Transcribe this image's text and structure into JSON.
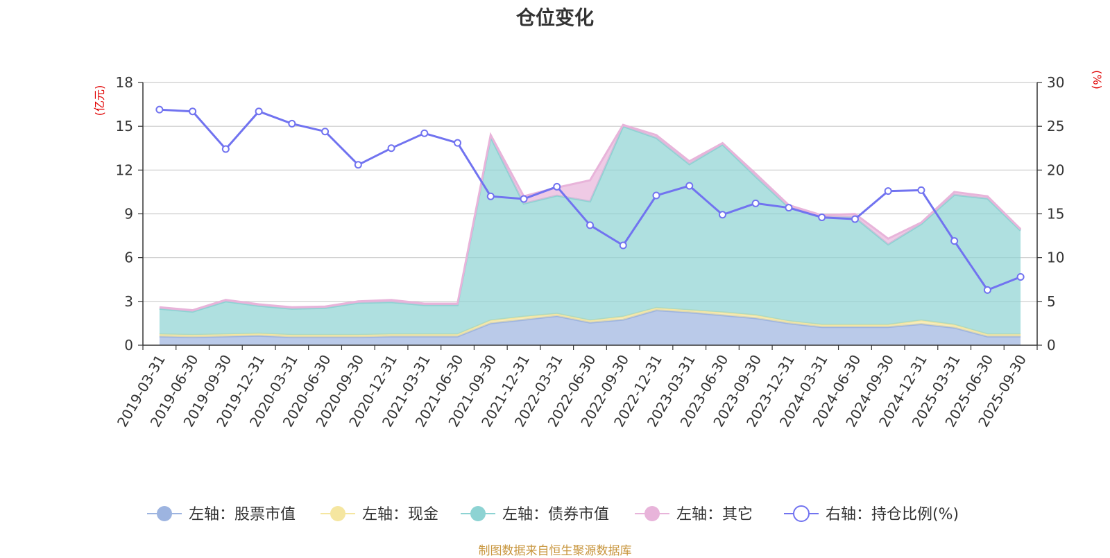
{
  "chart_data": {
    "type": "area",
    "title": "仓位变化",
    "source": "制图数据来自恒生聚源数据库",
    "left_axis": {
      "unit": "(亿元)",
      "ylim": [
        0,
        18
      ],
      "ticks": [
        0,
        3,
        6,
        9,
        12,
        15,
        18
      ]
    },
    "right_axis": {
      "unit": "(%)",
      "ylim": [
        0,
        30
      ],
      "ticks": [
        0,
        5,
        10,
        15,
        20,
        25,
        30
      ]
    },
    "categories": [
      "2019-03-31",
      "2019-06-30",
      "2019-09-30",
      "2019-12-31",
      "2020-03-31",
      "2020-06-30",
      "2020-09-30",
      "2020-12-31",
      "2021-03-31",
      "2021-06-30",
      "2021-09-30",
      "2021-12-31",
      "2022-03-31",
      "2022-06-30",
      "2022-09-30",
      "2022-12-31",
      "2023-03-31",
      "2023-06-30",
      "2023-09-30",
      "2023-12-31",
      "2024-03-31",
      "2024-06-30",
      "2024-09-30",
      "2024-12-31",
      "2025-03-31",
      "2025-06-30",
      "2025-09-30"
    ],
    "series": [
      {
        "name": "左轴：股票市值",
        "axis": "left",
        "kind": "stacked-area",
        "color": "#9db4e0",
        "values": [
          0.6,
          0.55,
          0.6,
          0.65,
          0.55,
          0.55,
          0.55,
          0.6,
          0.6,
          0.6,
          1.5,
          1.75,
          2.0,
          1.55,
          1.75,
          2.4,
          2.25,
          2.05,
          1.85,
          1.5,
          1.25,
          1.25,
          1.25,
          1.45,
          1.2,
          0.6,
          0.6
        ]
      },
      {
        "name": "左轴：现金",
        "axis": "left",
        "kind": "stacked-area",
        "color": "#f5e6a0",
        "values": [
          0.15,
          0.15,
          0.15,
          0.15,
          0.15,
          0.15,
          0.15,
          0.15,
          0.15,
          0.15,
          0.2,
          0.2,
          0.15,
          0.15,
          0.2,
          0.15,
          0.15,
          0.2,
          0.2,
          0.15,
          0.15,
          0.15,
          0.15,
          0.25,
          0.2,
          0.15,
          0.15
        ]
      },
      {
        "name": "左轴：债券市值",
        "axis": "left",
        "kind": "stacked-area",
        "color": "#8dd3d3",
        "values": [
          1.75,
          1.6,
          2.25,
          1.9,
          1.8,
          1.85,
          2.2,
          2.2,
          2.0,
          2.0,
          12.55,
          7.75,
          8.1,
          8.15,
          13.05,
          11.65,
          10.0,
          11.5,
          9.5,
          7.8,
          7.4,
          7.35,
          5.5,
          6.6,
          8.9,
          9.3,
          7.1
        ]
      },
      {
        "name": "左轴：其它",
        "axis": "left",
        "kind": "stacked-area",
        "color": "#e8b4da",
        "values": [
          0.1,
          0.1,
          0.1,
          0.1,
          0.1,
          0.1,
          0.1,
          0.15,
          0.1,
          0.1,
          0.15,
          0.5,
          0.55,
          1.45,
          0.1,
          0.2,
          0.2,
          0.1,
          0.2,
          0.15,
          0.1,
          0.25,
          0.4,
          0.1,
          0.2,
          0.15,
          0.1
        ]
      },
      {
        "name": "右轴：持仓比例(%)",
        "axis": "right",
        "kind": "line",
        "color": "#7173f0",
        "values": [
          26.9,
          26.7,
          22.4,
          26.7,
          25.3,
          24.4,
          20.6,
          22.5,
          24.2,
          23.1,
          17.0,
          16.7,
          18.1,
          13.7,
          11.4,
          17.1,
          18.2,
          14.9,
          16.2,
          15.7,
          14.6,
          14.4,
          17.6,
          17.7,
          11.9,
          6.3,
          7.8
        ]
      }
    ]
  }
}
